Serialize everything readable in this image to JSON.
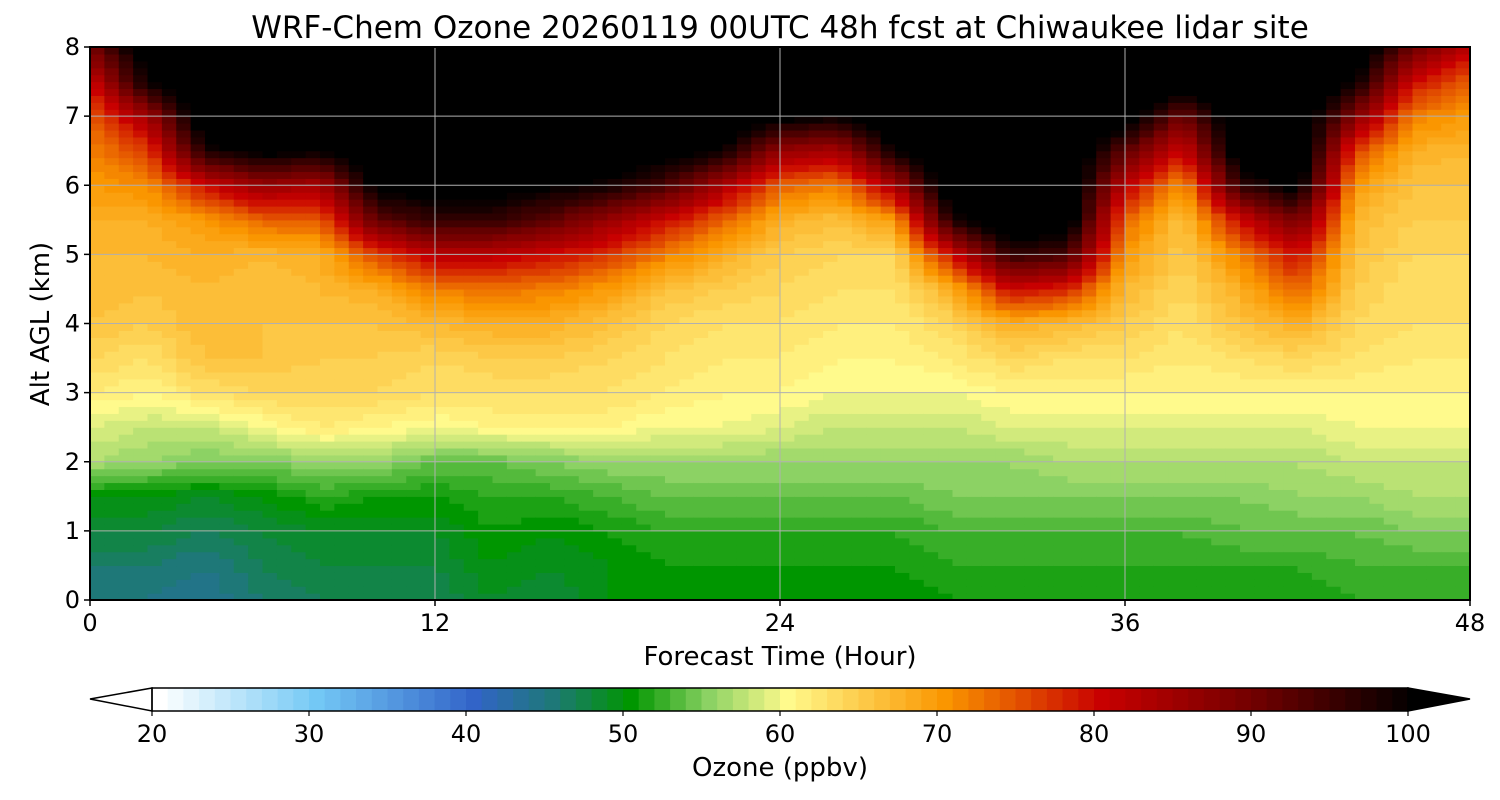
{
  "chart_data": {
    "type": "heatmap",
    "title": "WRF-Chem Ozone  20260119 00UTC 48h fcst at Chiwaukee lidar site",
    "xlabel": "Forecast Time (Hour)",
    "ylabel": "Alt AGL (km)",
    "xlim": [
      0,
      48
    ],
    "ylim": [
      0,
      8
    ],
    "x_ticks": [
      0,
      12,
      24,
      36,
      48
    ],
    "y_ticks": [
      0,
      1,
      2,
      3,
      4,
      5,
      6,
      7,
      8
    ],
    "grid": true,
    "colorbar": {
      "label": "Ozone  (ppbv)",
      "min": 20,
      "max": 100,
      "step": 1,
      "ticks": [
        20,
        30,
        40,
        50,
        60,
        70,
        80,
        90,
        100
      ],
      "extend": "both",
      "under_color": "#ffffff",
      "over_color": "#000000",
      "stops": [
        {
          "value": 20,
          "color": "#ffffff"
        },
        {
          "value": 30,
          "color": "#73c8f5"
        },
        {
          "value": 40,
          "color": "#3264c8"
        },
        {
          "value": 45,
          "color": "#1e7878"
        },
        {
          "value": 50,
          "color": "#009600"
        },
        {
          "value": 55,
          "color": "#8cd264"
        },
        {
          "value": 60,
          "color": "#fffa8c"
        },
        {
          "value": 70,
          "color": "#fa9600"
        },
        {
          "value": 80,
          "color": "#c80000"
        },
        {
          "value": 90,
          "color": "#6e0000"
        },
        {
          "value": 100,
          "color": "#000000"
        }
      ]
    },
    "x": [
      0,
      2,
      4,
      6,
      8,
      10,
      12,
      14,
      16,
      18,
      20,
      22,
      24,
      26,
      28,
      30,
      32,
      34,
      36,
      38,
      40,
      42,
      44,
      46,
      48
    ],
    "altitude_km": [
      0,
      0.5,
      1,
      1.5,
      2,
      2.5,
      3,
      3.5,
      4,
      4.5,
      5,
      5.5,
      6,
      6.5,
      7,
      7.5,
      8
    ],
    "series": [
      {
        "name": "profile",
        "hour": 0,
        "o3": [
          45,
          46,
          48,
          50,
          57,
          59,
          62,
          64,
          66,
          67,
          67,
          68,
          70,
          72,
          74,
          80,
          90
        ]
      },
      {
        "name": "profile",
        "hour": 2,
        "o3": [
          45,
          46,
          48,
          50,
          56,
          58,
          61,
          63,
          65,
          66,
          67,
          68,
          71,
          76,
          85,
          100,
          104
        ]
      },
      {
        "name": "profile",
        "hour": 4,
        "o3": [
          44,
          45,
          47,
          49,
          55,
          58,
          63,
          66,
          67,
          67,
          68,
          70,
          80,
          98,
          105,
          106,
          106
        ]
      },
      {
        "name": "profile",
        "hour": 6,
        "o3": [
          46,
          47,
          48,
          50,
          55,
          60,
          64,
          66,
          66,
          66,
          67,
          74,
          86,
          102,
          105,
          106,
          106
        ]
      },
      {
        "name": "profile",
        "hour": 8,
        "o3": [
          47,
          48,
          49,
          52,
          56,
          62,
          64,
          65,
          66,
          67,
          68,
          74,
          84,
          100,
          105,
          106,
          106
        ]
      },
      {
        "name": "profile",
        "hour": 10,
        "o3": [
          47,
          48,
          49,
          51,
          56,
          61,
          64,
          65,
          66,
          68,
          76,
          92,
          102,
          105,
          106,
          106,
          106
        ]
      },
      {
        "name": "profile",
        "hour": 12,
        "o3": [
          47,
          48,
          49,
          51,
          54,
          60,
          63,
          64,
          67,
          72,
          82,
          96,
          103,
          106,
          106,
          106,
          106
        ]
      },
      {
        "name": "profile",
        "hour": 14,
        "o3": [
          49,
          50,
          51,
          52,
          54,
          61,
          63,
          65,
          68,
          73,
          82,
          96,
          103,
          106,
          106,
          106,
          106
        ]
      },
      {
        "name": "profile",
        "hour": 16,
        "o3": [
          48,
          49,
          50,
          52,
          55,
          61,
          63,
          65,
          68,
          72,
          80,
          92,
          101,
          105,
          106,
          106,
          106
        ]
      },
      {
        "name": "profile",
        "hour": 18,
        "o3": [
          50,
          50,
          51,
          53,
          56,
          61,
          63,
          64,
          66,
          70,
          77,
          86,
          99,
          104,
          106,
          106,
          106
        ]
      },
      {
        "name": "profile",
        "hour": 20,
        "o3": [
          50,
          51,
          52,
          54,
          56,
          60,
          62,
          63,
          64,
          66,
          72,
          80,
          94,
          103,
          106,
          106,
          106
        ]
      },
      {
        "name": "profile",
        "hour": 22,
        "o3": [
          50,
          51,
          52,
          54,
          56,
          60,
          61,
          62,
          63,
          65,
          68,
          74,
          84,
          100,
          105,
          106,
          106
        ]
      },
      {
        "name": "profile",
        "hour": 24,
        "o3": [
          50,
          51,
          52,
          54,
          56,
          59,
          61,
          62,
          63,
          64,
          65,
          68,
          74,
          86,
          102,
          106,
          106
        ]
      },
      {
        "name": "profile",
        "hour": 26,
        "o3": [
          50,
          51,
          52,
          54,
          56,
          58,
          60,
          61,
          62,
          63,
          64,
          66,
          72,
          84,
          100,
          106,
          106
        ]
      },
      {
        "name": "profile",
        "hour": 28,
        "o3": [
          50,
          51,
          52,
          54,
          56,
          58,
          60,
          61,
          62,
          63,
          64,
          70,
          84,
          100,
          106,
          106,
          106
        ]
      },
      {
        "name": "profile",
        "hour": 30,
        "o3": [
          51,
          52,
          53,
          55,
          56,
          58,
          60,
          62,
          64,
          68,
          80,
          98,
          106,
          106,
          106,
          106,
          106
        ]
      },
      {
        "name": "profile",
        "hour": 32,
        "o3": [
          51,
          52,
          53,
          55,
          56,
          59,
          61,
          64,
          68,
          80,
          96,
          106,
          106,
          106,
          106,
          106,
          106
        ]
      },
      {
        "name": "profile",
        "hour": 34,
        "o3": [
          51,
          52,
          53,
          55,
          57,
          59,
          61,
          63,
          67,
          78,
          94,
          104,
          106,
          106,
          106,
          106,
          106
        ]
      },
      {
        "name": "profile",
        "hour": 36,
        "o3": [
          51,
          52,
          53,
          55,
          57,
          59,
          61,
          63,
          65,
          67,
          70,
          74,
          82,
          92,
          104,
          106,
          106
        ]
      },
      {
        "name": "profile",
        "hour": 38,
        "o3": [
          51,
          52,
          53,
          55,
          57,
          59,
          61,
          62,
          63,
          64,
          65,
          66,
          70,
          80,
          90,
          104,
          106
        ]
      },
      {
        "name": "profile",
        "hour": 40,
        "o3": [
          51,
          52,
          54,
          55,
          57,
          59,
          61,
          63,
          66,
          68,
          72,
          80,
          96,
          104,
          106,
          106,
          106
        ]
      },
      {
        "name": "profile",
        "hour": 42,
        "o3": [
          51,
          52,
          54,
          56,
          57,
          59,
          61,
          64,
          68,
          74,
          80,
          90,
          102,
          106,
          106,
          106,
          106
        ]
      },
      {
        "name": "profile",
        "hour": 44,
        "o3": [
          52,
          53,
          54,
          56,
          58,
          60,
          61,
          63,
          64,
          65,
          66,
          67,
          70,
          76,
          88,
          100,
          106
        ]
      },
      {
        "name": "profile",
        "hour": 46,
        "o3": [
          52,
          53,
          55,
          57,
          58,
          60,
          61,
          62,
          63,
          63,
          64,
          65,
          66,
          68,
          72,
          80,
          90
        ]
      },
      {
        "name": "profile",
        "hour": 48,
        "o3": [
          52,
          53,
          55,
          57,
          58,
          60,
          61,
          62,
          63,
          63,
          64,
          65,
          66,
          67,
          70,
          74,
          82
        ]
      }
    ]
  }
}
